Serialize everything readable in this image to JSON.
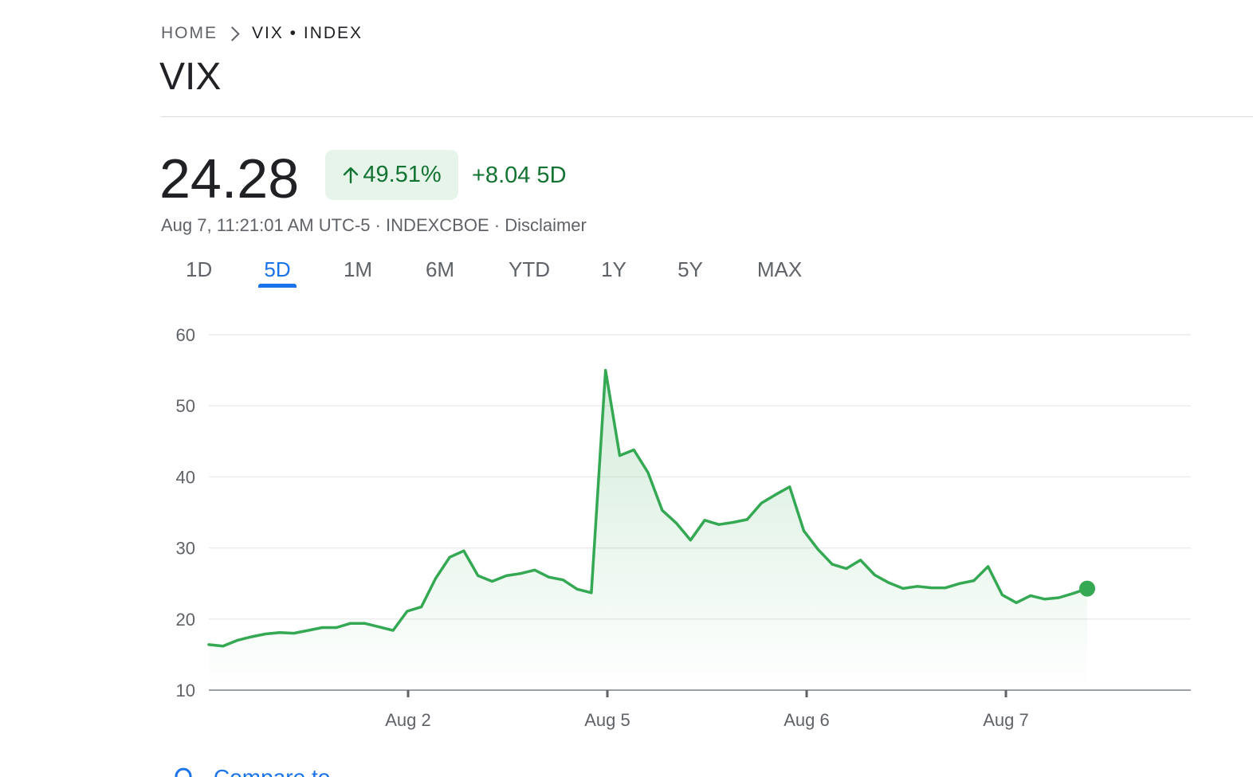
{
  "breadcrumb": {
    "home": "HOME",
    "current": "VIX • INDEX"
  },
  "title": "VIX",
  "quote": {
    "price": "24.28",
    "change_pct": "49.51%",
    "change_abs": "+8.04 5D",
    "meta": "Aug 7, 11:21:01 AM UTC-5 · INDEXCBOE · Disclaimer"
  },
  "range_tabs": [
    "1D",
    "5D",
    "1M",
    "6M",
    "YTD",
    "1Y",
    "5Y",
    "MAX"
  ],
  "active_tab": "5D",
  "colors": {
    "line": "#34a853",
    "positive_text": "#137333",
    "positive_bg": "#e6f4ea",
    "accent": "#1a73e8"
  },
  "bottom_link": "Compare to",
  "chart_data": {
    "type": "area",
    "ylim": [
      10,
      60
    ],
    "y_ticks": [
      60,
      50,
      40,
      30,
      20,
      10
    ],
    "x_ticks": [
      "Aug 2",
      "Aug 5",
      "Aug 6",
      "Aug 7"
    ],
    "grid": true,
    "series": [
      {
        "values": [
          16.4,
          16.2,
          17.0,
          17.5,
          17.9,
          18.1,
          18.0,
          18.4,
          18.8,
          18.8,
          19.4,
          19.4,
          18.9,
          18.4,
          21.1,
          21.7,
          25.7,
          28.7,
          29.6,
          26.1,
          25.3,
          26.1,
          26.4,
          26.9,
          25.9,
          25.5,
          24.2,
          23.7,
          55.0,
          43.0,
          43.8,
          40.6,
          35.3,
          33.5,
          31.1,
          33.9,
          33.3,
          33.6,
          34.0,
          36.3,
          37.5,
          38.6,
          32.4,
          29.8,
          27.7,
          27.1,
          28.3,
          26.2,
          25.1,
          24.3,
          24.6,
          24.4,
          24.4,
          25.0,
          25.4,
          27.4,
          23.4,
          22.3,
          23.3,
          22.8,
          23.0,
          23.6,
          24.28
        ]
      }
    ]
  }
}
